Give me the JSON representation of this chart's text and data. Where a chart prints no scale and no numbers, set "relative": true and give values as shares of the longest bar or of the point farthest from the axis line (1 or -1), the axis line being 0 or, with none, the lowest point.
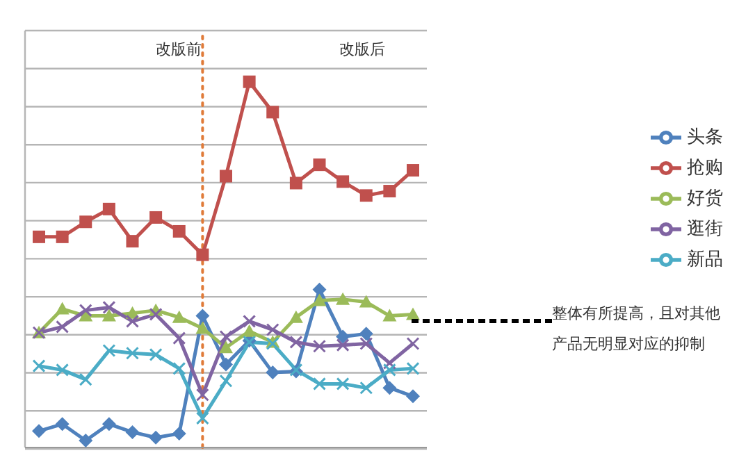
{
  "chart_data": {
    "type": "line",
    "relative": true,
    "grid": "y",
    "legend": "right",
    "categories": [
      null,
      null,
      null,
      null,
      null,
      null,
      null,
      null,
      null,
      null,
      null,
      null,
      null,
      null,
      null,
      null,
      null
    ],
    "series": [
      {
        "name": "头条",
        "color": "#4f81bd",
        "marker": "diamond",
        "values": [
          0.045,
          0.064,
          0.019,
          0.064,
          0.042,
          0.027,
          0.038,
          0.36,
          0.227,
          0.292,
          0.205,
          0.208,
          0.432,
          0.303,
          0.311,
          0.163,
          0.14
        ]
      },
      {
        "name": "抢购",
        "color": "#c0504d",
        "marker": "square",
        "values": [
          0.576,
          0.576,
          0.617,
          0.652,
          0.564,
          0.629,
          0.591,
          0.527,
          0.742,
          1,
          0.917,
          0.723,
          0.773,
          0.727,
          0.689,
          0.701,
          0.758
        ]
      },
      {
        "name": "好货",
        "color": "#9bbb59",
        "marker": "triangle",
        "values": [
          0.314,
          0.379,
          0.36,
          0.36,
          0.367,
          0.375,
          0.356,
          0.326,
          0.273,
          0.318,
          0.288,
          0.356,
          0.402,
          0.405,
          0.398,
          0.36,
          0.364
        ]
      },
      {
        "name": "逛街",
        "color": "#8064a2",
        "marker": "cross",
        "values": [
          0.314,
          0.33,
          0.375,
          0.383,
          0.345,
          0.364,
          0.299,
          0.144,
          0.303,
          0.345,
          0.322,
          0.288,
          0.277,
          0.28,
          0.284,
          0.231,
          0.284
        ]
      },
      {
        "name": "新品",
        "color": "#4bacc6",
        "marker": "cross",
        "values": [
          0.223,
          0.212,
          0.186,
          0.265,
          0.258,
          0.254,
          0.216,
          0.08,
          0.182,
          0.288,
          0.284,
          0.212,
          0.174,
          0.174,
          0.163,
          0.212,
          0.216
        ]
      }
    ],
    "annotations": [
      "改版前",
      "改版后",
      "整体有所提高，且对其他产品无明显对应的抑制"
    ]
  }
}
